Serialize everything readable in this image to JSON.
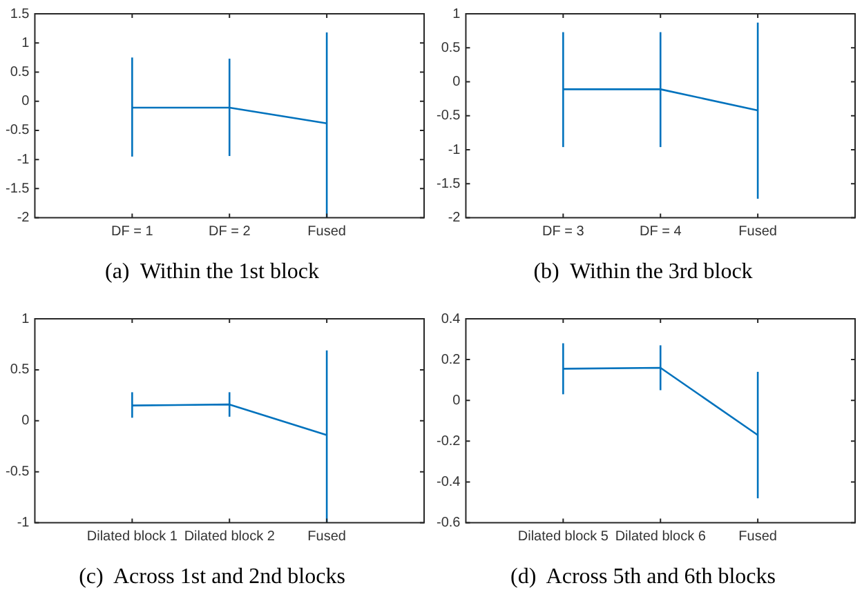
{
  "chart_data": [
    {
      "type": "line",
      "title": "(a)  Within the 1st block",
      "categories": [
        "DF = 1",
        "DF = 2",
        "Fused"
      ],
      "series": [
        {
          "color": "#0072bd",
          "values": [
            -0.11,
            -0.11,
            -0.38
          ],
          "errors": [
            [
              -0.95,
              0.75
            ],
            [
              -0.94,
              0.73
            ],
            [
              -2,
              1.18
            ]
          ]
        }
      ],
      "ylim": [
        -2,
        1.5
      ],
      "yticks": [
        -2,
        -1.5,
        -1,
        -0.5,
        0,
        0.5,
        1,
        1.5
      ],
      "grid": false,
      "legend": false
    },
    {
      "type": "line",
      "title": "(b)  Within the 3rd block",
      "categories": [
        "DF = 3",
        "DF = 4",
        "Fused"
      ],
      "series": [
        {
          "color": "#0072bd",
          "values": [
            -0.11,
            -0.11,
            -0.42
          ],
          "errors": [
            [
              -0.96,
              0.73
            ],
            [
              -0.96,
              0.73
            ],
            [
              -1.72,
              0.87
            ]
          ]
        }
      ],
      "ylim": [
        -2,
        1
      ],
      "yticks": [
        -2,
        -1.5,
        -1,
        -0.5,
        0,
        0.5,
        1
      ],
      "grid": false,
      "legend": false
    },
    {
      "type": "line",
      "title": "(c)  Across 1st and 2nd blocks",
      "categories": [
        "Dilated block 1",
        "Dilated block 2",
        "Fused"
      ],
      "series": [
        {
          "color": "#0072bd",
          "values": [
            0.15,
            0.16,
            -0.14
          ],
          "errors": [
            [
              0.03,
              0.28
            ],
            [
              0.04,
              0.28
            ],
            [
              -1,
              0.69
            ]
          ]
        }
      ],
      "ylim": [
        -1,
        1
      ],
      "yticks": [
        -1,
        -0.5,
        0,
        0.5,
        1
      ],
      "grid": false,
      "legend": false
    },
    {
      "type": "line",
      "title": "(d)  Across 5th and 6th blocks",
      "categories": [
        "Dilated block 5",
        "Dilated block 6",
        "Fused"
      ],
      "series": [
        {
          "color": "#0072bd",
          "values": [
            0.155,
            0.16,
            -0.17
          ],
          "errors": [
            [
              0.03,
              0.28
            ],
            [
              0.05,
              0.27
            ],
            [
              -0.48,
              0.14
            ]
          ]
        }
      ],
      "ylim": [
        -0.6,
        0.4
      ],
      "yticks": [
        -0.6,
        -0.4,
        -0.2,
        0,
        0.2,
        0.4
      ],
      "grid": false,
      "legend": false
    }
  ]
}
